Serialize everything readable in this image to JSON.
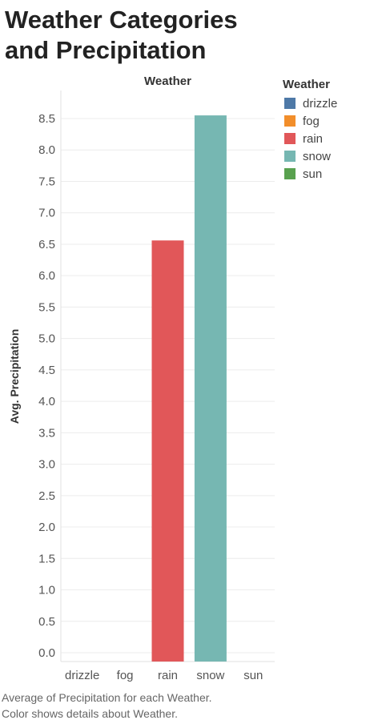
{
  "chart_data": {
    "type": "bar",
    "title": "Weather Categories and Precipitation",
    "column_header": "Weather",
    "ylabel": "Avg. Precipitation",
    "categories": [
      "drizzle",
      "fog",
      "rain",
      "snow",
      "sun"
    ],
    "values": [
      0,
      0,
      6.56,
      8.55,
      0
    ],
    "colors": [
      "#4e79a7",
      "#f28e2b",
      "#e15759",
      "#76b7b2",
      "#59a14f"
    ],
    "ylim": [
      0,
      8.7
    ],
    "yticks": [
      "0.0",
      "0.5",
      "1.0",
      "1.5",
      "2.0",
      "2.5",
      "3.0",
      "3.5",
      "4.0",
      "4.5",
      "5.0",
      "5.5",
      "6.0",
      "6.5",
      "7.0",
      "7.5",
      "8.0",
      "8.5"
    ],
    "grid": true,
    "legend": {
      "title": "Weather",
      "position": "right",
      "items": [
        "drizzle",
        "fog",
        "rain",
        "snow",
        "sun"
      ]
    },
    "caption": [
      "Average of Precipitation for each Weather.",
      "Color shows details about Weather."
    ]
  }
}
